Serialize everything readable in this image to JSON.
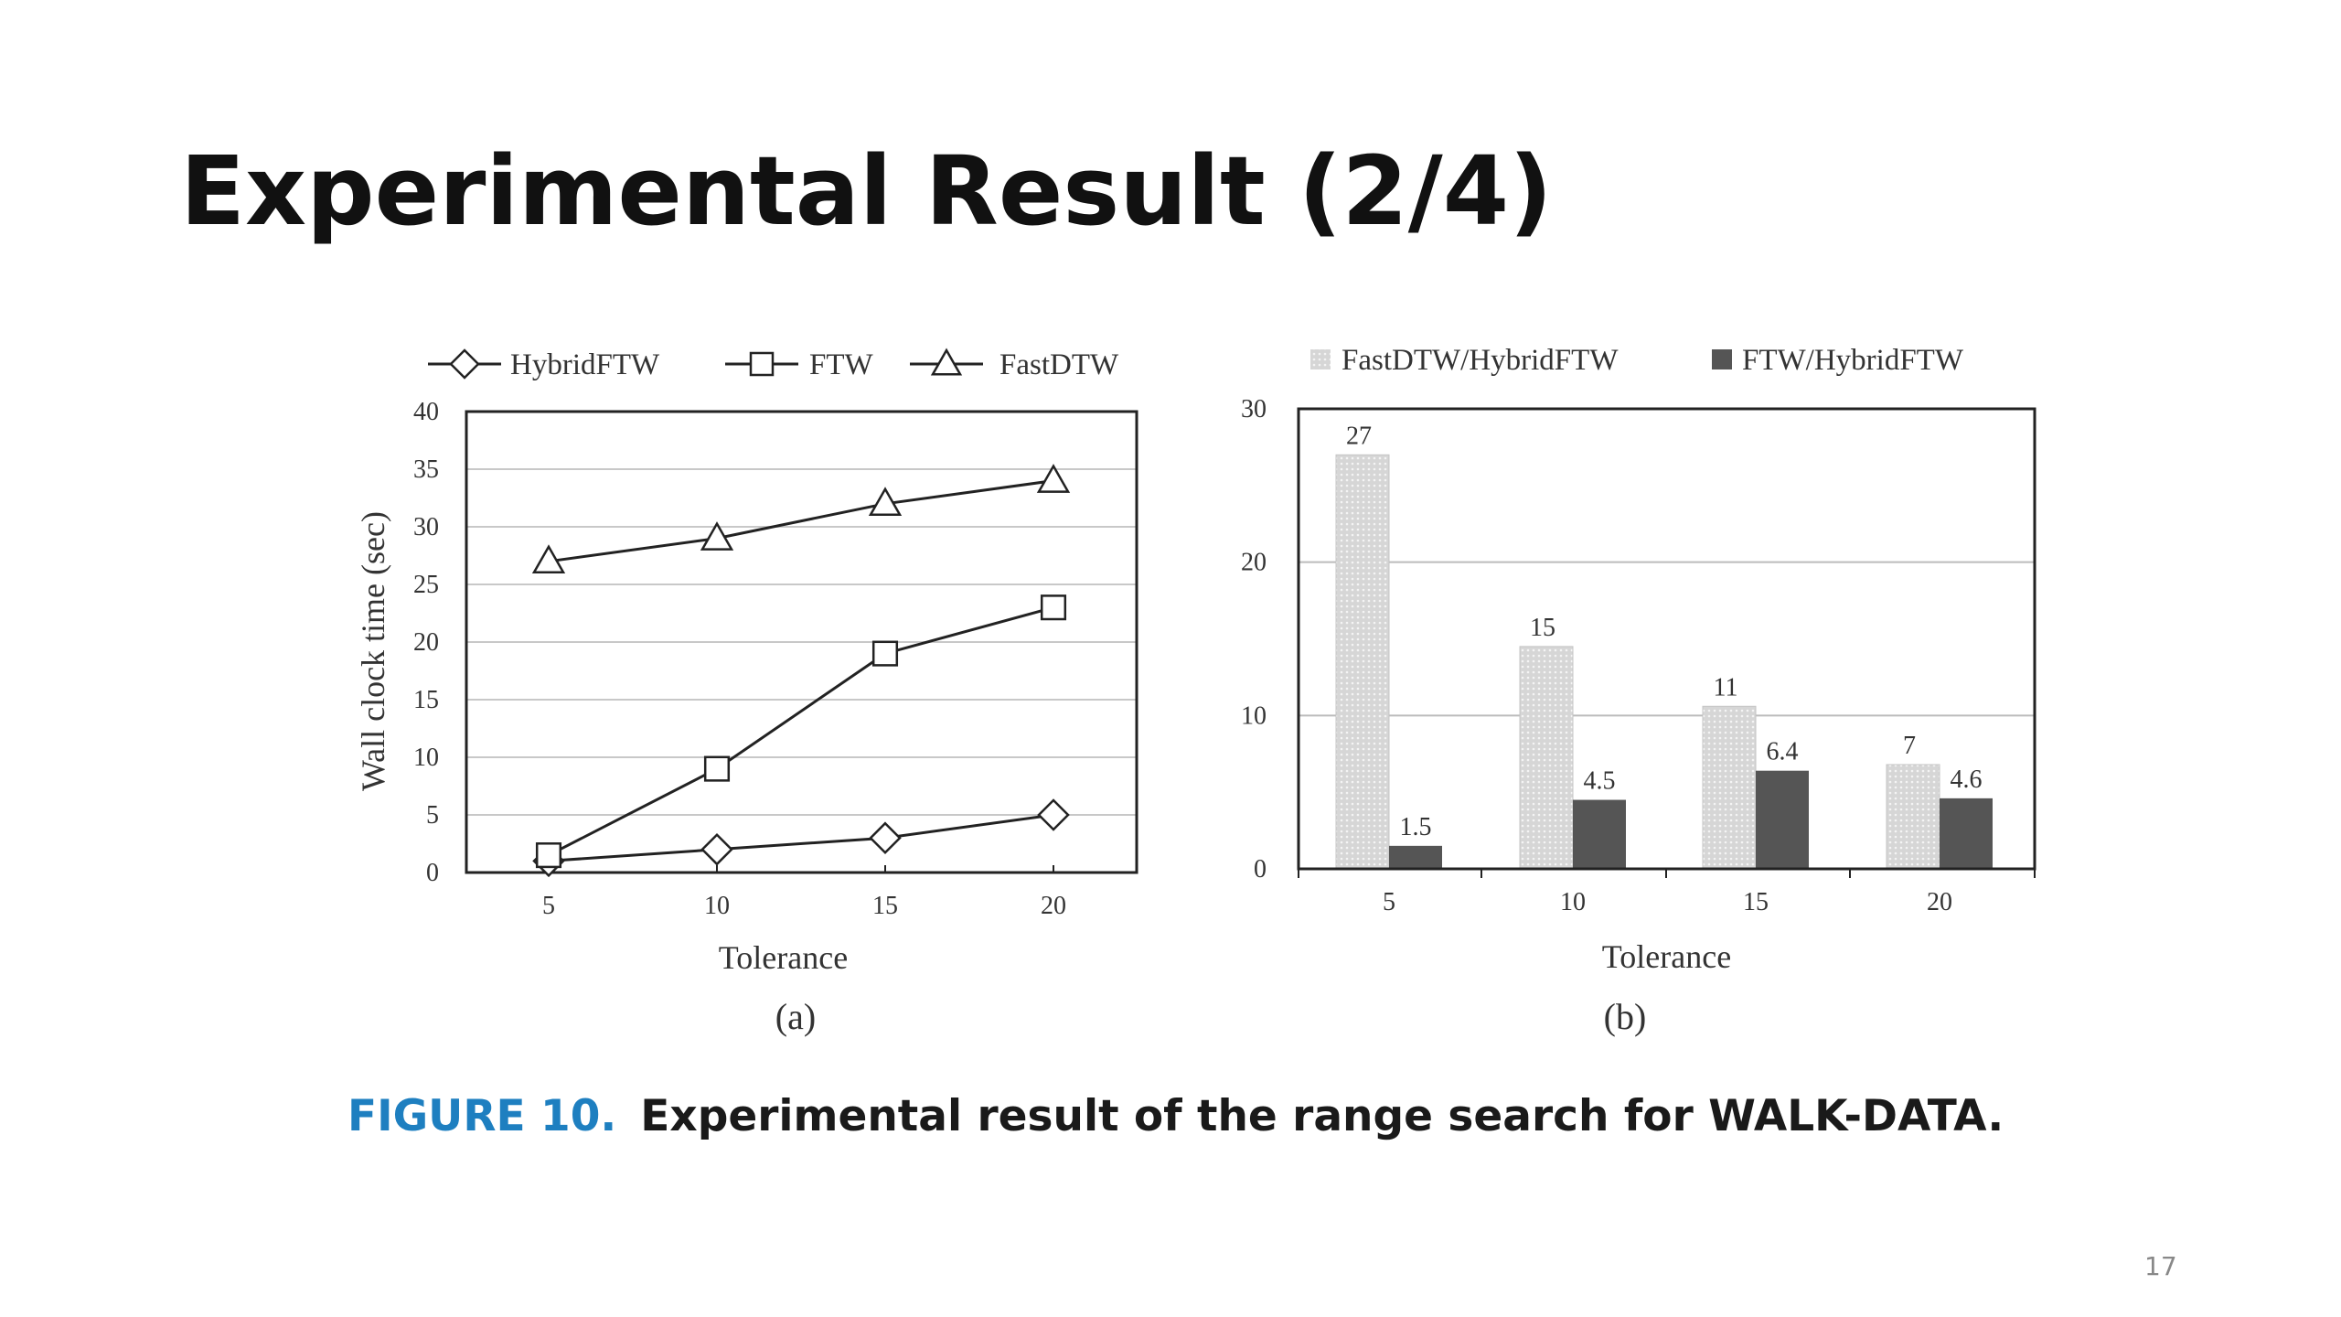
{
  "slide": {
    "title": "Experimental Result (2/4)",
    "page_number": "17"
  },
  "caption": {
    "label": "FIGURE 10.",
    "text": "Experimental result of the range search for WALK-DATA."
  },
  "chart_data": [
    {
      "type": "line",
      "panel_label": "(a)",
      "xlabel": "Tolerance",
      "ylabel": "Wall clock time (sec)",
      "x": [
        5,
        10,
        15,
        20
      ],
      "ylim": [
        0,
        40
      ],
      "yticks": [
        0,
        5,
        10,
        15,
        20,
        25,
        30,
        35,
        40
      ],
      "grid": true,
      "legend_position": "top",
      "series": [
        {
          "name": "HybridFTW",
          "marker": "diamond",
          "values": [
            1,
            2,
            3,
            5
          ]
        },
        {
          "name": "FTW",
          "marker": "square",
          "values": [
            1.5,
            9,
            19,
            23
          ]
        },
        {
          "name": "FastDTW",
          "marker": "triangle",
          "values": [
            27,
            29,
            32,
            34
          ]
        }
      ]
    },
    {
      "type": "bar",
      "panel_label": "(b)",
      "xlabel": "Tolerance",
      "ylabel": "",
      "categories": [
        "5",
        "10",
        "15",
        "20"
      ],
      "ylim": [
        0,
        30
      ],
      "yticks": [
        0,
        10,
        20,
        30
      ],
      "grid": true,
      "legend_position": "top",
      "series": [
        {
          "name": "FastDTW/HybridFTW",
          "color": "#d4d4d4",
          "values": [
            27,
            14.5,
            10.6,
            6.8
          ],
          "labels": [
            "27",
            "15",
            "11",
            "7"
          ]
        },
        {
          "name": "FTW/HybridFTW",
          "color": "#555555",
          "values": [
            1.5,
            4.5,
            6.4,
            4.6
          ],
          "labels": [
            "1.5",
            "4.5",
            "6.4",
            "4.6"
          ]
        }
      ]
    }
  ]
}
